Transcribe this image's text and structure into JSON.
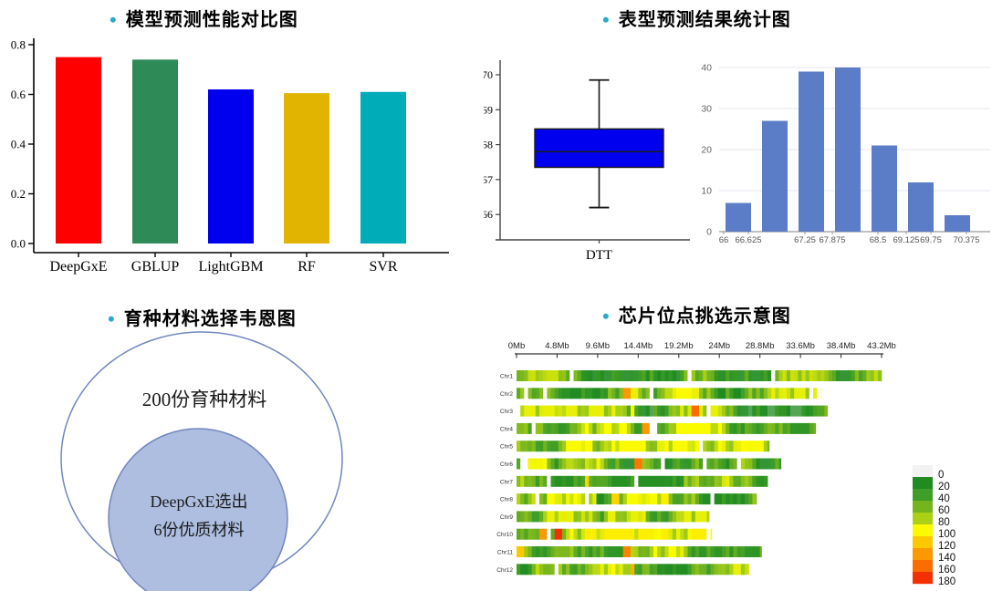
{
  "figure": {
    "bullet": "•",
    "bullet_color": "#2ba8d1"
  },
  "panels": {
    "model_comparison": {
      "title": "模型预测性能对比图"
    },
    "phenotype_stats": {
      "title": "表型预测结果统计图"
    },
    "venn": {
      "title": "育种材料选择韦恩图"
    },
    "chip_loci": {
      "title": "芯片位点挑选示意图"
    }
  },
  "chart_data": [
    {
      "id": "model-comparison-bar",
      "type": "bar",
      "title": "模型预测性能对比图",
      "categories": [
        "DeepGxE",
        "GBLUP",
        "LightGBM",
        "RF",
        "SVR"
      ],
      "values": [
        0.75,
        0.74,
        0.62,
        0.605,
        0.61
      ],
      "colors": [
        "#ff0000",
        "#2e8b57",
        "#0000ee",
        "#e0b400",
        "#00acb8"
      ],
      "ylim": [
        0,
        0.8
      ],
      "ytick_labels": [
        "0.0",
        "0.2",
        "0.4",
        "0.6",
        "0.8"
      ],
      "yticks": [
        0,
        0.2,
        0.4,
        0.6,
        0.8
      ],
      "grid": false
    },
    {
      "id": "dtt-boxplot",
      "type": "box",
      "category": "DTT",
      "whisker_low": 66.2,
      "q1": 67.35,
      "median": 67.8,
      "q3": 68.45,
      "whisker_high": 69.85,
      "yticks": [
        66,
        67,
        68,
        69,
        70
      ],
      "box_color": "#0000ee",
      "stroke_color": "#1a1a1a"
    },
    {
      "id": "dtt-histogram",
      "type": "bar",
      "counts": [
        7,
        27,
        39,
        40,
        21,
        12,
        4
      ],
      "bin_labels": [
        "66",
        "66.625",
        "67.25",
        "67.875",
        "68.5",
        "69.125",
        "69.75",
        "70.375"
      ],
      "yticks": [
        0,
        10,
        20,
        30,
        40
      ],
      "ylim": [
        0,
        40
      ],
      "bar_color": "#5b7cc7",
      "grid": true
    },
    {
      "id": "breeding-venn",
      "type": "venn",
      "outer_label": "200份育种材料",
      "inner_label_line1": "DeepGxE选出",
      "inner_label_line2": "6份优质材料",
      "outer_fill": "#ffffff",
      "inner_fill": "#aebee1",
      "stroke": "#7287bf"
    },
    {
      "id": "chip-loci-heatmap",
      "type": "heatmap",
      "axis_tick_labels": [
        "0Mb",
        "4.8Mb",
        "9.6Mb",
        "14.4Mb",
        "19.2Mb",
        "24Mb",
        "28.8Mb",
        "33.6Mb",
        "38.4Mb",
        "43.2Mb"
      ],
      "axis_ticks_mb": [
        0,
        4.8,
        9.6,
        14.4,
        19.2,
        24,
        28.8,
        33.6,
        38.4,
        43.2
      ],
      "axis_max_mb": 43.2,
      "legend": {
        "values": [
          0,
          20,
          40,
          60,
          80,
          100,
          120,
          140,
          160,
          180
        ],
        "colors": [
          "#f2f2f2",
          "#1f8b21",
          "#3f9e26",
          "#74b41f",
          "#abd016",
          "#fbfb00",
          "#fcc800",
          "#fc9800",
          "#fb6c00",
          "#f23000"
        ]
      },
      "chromosomes": [
        {
          "name": "Chr1",
          "length_mb": 43.2,
          "seed": 11,
          "range": [
            18,
            88
          ],
          "hotspots_mb_value_width": []
        },
        {
          "name": "Chr2",
          "length_mb": 36.0,
          "seed": 22,
          "range": [
            20,
            95
          ],
          "hotspots_mb_value_width": [
            [
              13.0,
              140,
              0.7
            ],
            [
              19.8,
              100,
              2.0
            ]
          ]
        },
        {
          "name": "Chr3",
          "length_mb": 36.8,
          "seed": 33,
          "range": [
            15,
            95
          ],
          "hotspots_mb_value_width": [
            [
              13.6,
              100,
              0.6
            ],
            [
              21.1,
              160,
              1.0
            ]
          ]
        },
        {
          "name": "Chr4",
          "length_mb": 35.4,
          "seed": 44,
          "range": [
            30,
            100
          ],
          "hotspots_mb_value_width": [
            [
              15.4,
              140,
              0.8
            ],
            [
              16.2,
              0,
              0.6
            ]
          ]
        },
        {
          "name": "Chr5",
          "length_mb": 29.9,
          "seed": 55,
          "range": [
            40,
            100
          ],
          "hotspots_mb_value_width": [
            [
              8.4,
              100,
              1.0
            ],
            [
              17.0,
              95,
              0.8
            ]
          ]
        },
        {
          "name": "Chr6",
          "length_mb": 31.3,
          "seed": 66,
          "range": [
            18,
            98
          ],
          "hotspots_mb_value_width": [
            [
              3.4,
              100,
              0.8
            ],
            [
              14.5,
              155,
              1.0
            ]
          ]
        },
        {
          "name": "Chr7",
          "length_mb": 29.7,
          "seed": 77,
          "range": [
            25,
            98
          ],
          "hotspots_mb_value_width": [
            [
              8.3,
              115,
              0.7
            ]
          ]
        },
        {
          "name": "Chr8",
          "length_mb": 28.4,
          "seed": 88,
          "range": [
            22,
            100
          ],
          "hotspots_mb_value_width": [
            [
              11.7,
              115,
              0.7
            ],
            [
              17.5,
              105,
              0.8
            ]
          ]
        },
        {
          "name": "Chr9",
          "length_mb": 22.8,
          "seed": 99,
          "range": [
            35,
            95
          ],
          "hotspots_mb_value_width": []
        },
        {
          "name": "Chr10",
          "length_mb": 23.1,
          "seed": 101,
          "range": [
            40,
            105
          ],
          "hotspots_mb_value_width": [
            [
              3.0,
              140,
              0.8
            ],
            [
              3.9,
              0,
              0.5
            ],
            [
              4.9,
              180,
              0.9
            ]
          ]
        },
        {
          "name": "Chr11",
          "length_mb": 29.0,
          "seed": 111,
          "range": [
            30,
            100
          ],
          "hotspots_mb_value_width": [
            [
              0.4,
              120,
              0.9
            ],
            [
              13.0,
              150,
              1.0
            ]
          ]
        },
        {
          "name": "Chr12",
          "length_mb": 27.5,
          "seed": 121,
          "range": [
            22,
            95
          ],
          "hotspots_mb_value_width": [
            [
              11.6,
              100,
              0.6
            ],
            [
              13.9,
              130,
              0.5
            ]
          ]
        }
      ]
    }
  ]
}
